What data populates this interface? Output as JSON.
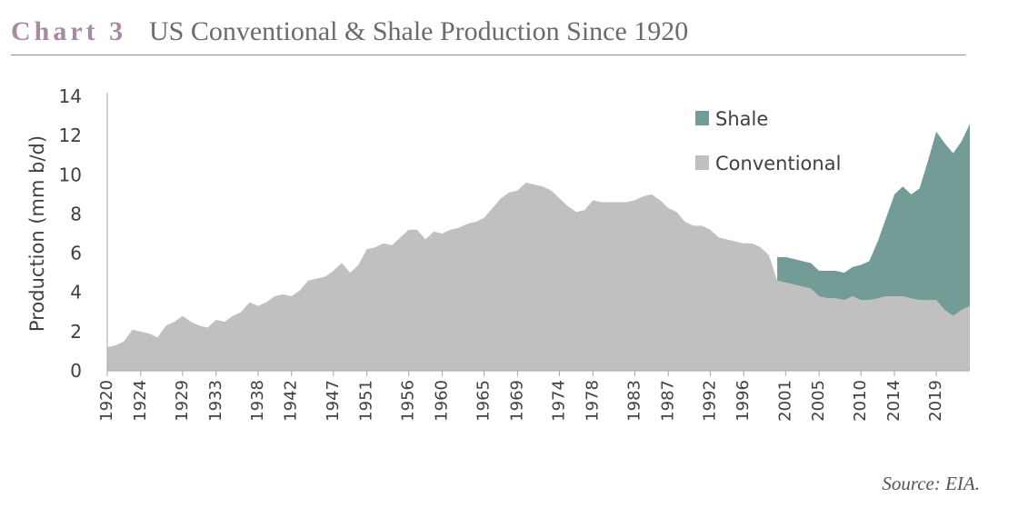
{
  "header": {
    "chart_label": "Chart 3",
    "title": "US Conventional & Shale Production Since 1920"
  },
  "source": "Source: EIA.",
  "colors": {
    "chart_label": "#a98aa3",
    "conventional": "#c0c0c0",
    "shale": "#739c96",
    "text": "#404040"
  },
  "chart_data": {
    "type": "area",
    "stacked": true,
    "title": "US Conventional & Shale Production Since 1920",
    "xlabel": "",
    "ylabel": "Production (mm b/d)",
    "xlim": [
      1920,
      2023
    ],
    "ylim": [
      0,
      14
    ],
    "yticks": [
      0,
      2,
      4,
      6,
      8,
      10,
      12,
      14
    ],
    "xtick_labels": [
      "1920",
      "1924",
      "1929",
      "1933",
      "1938",
      "1942",
      "1947",
      "1951",
      "1956",
      "1960",
      "1965",
      "1969",
      "1974",
      "1978",
      "1983",
      "1987",
      "1992",
      "1996",
      "2001",
      "2005",
      "2010",
      "2014",
      "2019"
    ],
    "legend": {
      "position": "top-right",
      "entries": [
        "Shale",
        "Conventional"
      ]
    },
    "series": [
      {
        "name": "Conventional",
        "points": [
          [
            1920,
            1.2
          ],
          [
            1921,
            1.3
          ],
          [
            1922,
            1.5
          ],
          [
            1923,
            2.1
          ],
          [
            1924,
            2.0
          ],
          [
            1925,
            1.9
          ],
          [
            1926,
            1.7
          ],
          [
            1927,
            2.3
          ],
          [
            1928,
            2.5
          ],
          [
            1929,
            2.8
          ],
          [
            1930,
            2.5
          ],
          [
            1931,
            2.3
          ],
          [
            1932,
            2.2
          ],
          [
            1933,
            2.6
          ],
          [
            1934,
            2.5
          ],
          [
            1935,
            2.8
          ],
          [
            1936,
            3.0
          ],
          [
            1937,
            3.5
          ],
          [
            1938,
            3.3
          ],
          [
            1939,
            3.5
          ],
          [
            1940,
            3.8
          ],
          [
            1941,
            3.9
          ],
          [
            1942,
            3.8
          ],
          [
            1943,
            4.1
          ],
          [
            1944,
            4.6
          ],
          [
            1945,
            4.7
          ],
          [
            1946,
            4.8
          ],
          [
            1947,
            5.1
          ],
          [
            1948,
            5.5
          ],
          [
            1949,
            5.0
          ],
          [
            1950,
            5.4
          ],
          [
            1951,
            6.2
          ],
          [
            1952,
            6.3
          ],
          [
            1953,
            6.5
          ],
          [
            1954,
            6.4
          ],
          [
            1955,
            6.8
          ],
          [
            1956,
            7.2
          ],
          [
            1957,
            7.2
          ],
          [
            1958,
            6.7
          ],
          [
            1959,
            7.1
          ],
          [
            1960,
            7.0
          ],
          [
            1961,
            7.2
          ],
          [
            1962,
            7.3
          ],
          [
            1963,
            7.5
          ],
          [
            1964,
            7.6
          ],
          [
            1965,
            7.8
          ],
          [
            1966,
            8.3
          ],
          [
            1967,
            8.8
          ],
          [
            1968,
            9.1
          ],
          [
            1969,
            9.2
          ],
          [
            1970,
            9.6
          ],
          [
            1971,
            9.5
          ],
          [
            1972,
            9.4
          ],
          [
            1973,
            9.2
          ],
          [
            1974,
            8.8
          ],
          [
            1975,
            8.4
          ],
          [
            1976,
            8.1
          ],
          [
            1977,
            8.2
          ],
          [
            1978,
            8.7
          ],
          [
            1979,
            8.6
          ],
          [
            1980,
            8.6
          ],
          [
            1981,
            8.6
          ],
          [
            1982,
            8.6
          ],
          [
            1983,
            8.7
          ],
          [
            1984,
            8.9
          ],
          [
            1985,
            9.0
          ],
          [
            1986,
            8.7
          ],
          [
            1987,
            8.3
          ],
          [
            1988,
            8.1
          ],
          [
            1989,
            7.6
          ],
          [
            1990,
            7.4
          ],
          [
            1991,
            7.4
          ],
          [
            1992,
            7.2
          ],
          [
            1993,
            6.8
          ],
          [
            1994,
            6.7
          ],
          [
            1995,
            6.6
          ],
          [
            1996,
            6.5
          ],
          [
            1997,
            6.5
          ],
          [
            1998,
            6.3
          ],
          [
            1999,
            5.9
          ],
          [
            2000,
            4.6
          ],
          [
            2001,
            4.5
          ],
          [
            2002,
            4.4
          ],
          [
            2003,
            4.3
          ],
          [
            2004,
            4.2
          ],
          [
            2005,
            3.8
          ],
          [
            2006,
            3.7
          ],
          [
            2007,
            3.7
          ],
          [
            2008,
            3.6
          ],
          [
            2009,
            3.8
          ],
          [
            2010,
            3.6
          ],
          [
            2011,
            3.6
          ],
          [
            2012,
            3.7
          ],
          [
            2013,
            3.8
          ],
          [
            2014,
            3.8
          ],
          [
            2015,
            3.8
          ],
          [
            2016,
            3.7
          ],
          [
            2017,
            3.6
          ],
          [
            2018,
            3.6
          ],
          [
            2019,
            3.6
          ],
          [
            2020,
            3.1
          ],
          [
            2021,
            2.8
          ],
          [
            2022,
            3.1
          ],
          [
            2023,
            3.3
          ]
        ]
      },
      {
        "name": "Shale",
        "points": [
          [
            2000,
            1.2
          ],
          [
            2001,
            1.3
          ],
          [
            2002,
            1.3
          ],
          [
            2003,
            1.3
          ],
          [
            2004,
            1.3
          ],
          [
            2005,
            1.3
          ],
          [
            2006,
            1.4
          ],
          [
            2007,
            1.4
          ],
          [
            2008,
            1.4
          ],
          [
            2009,
            1.5
          ],
          [
            2010,
            1.8
          ],
          [
            2011,
            2.0
          ],
          [
            2012,
            2.9
          ],
          [
            2013,
            4.0
          ],
          [
            2014,
            5.2
          ],
          [
            2015,
            5.6
          ],
          [
            2016,
            5.3
          ],
          [
            2017,
            5.7
          ],
          [
            2018,
            7.1
          ],
          [
            2019,
            8.6
          ],
          [
            2020,
            8.5
          ],
          [
            2021,
            8.3
          ],
          [
            2022,
            8.6
          ],
          [
            2023,
            9.3
          ]
        ]
      }
    ]
  }
}
